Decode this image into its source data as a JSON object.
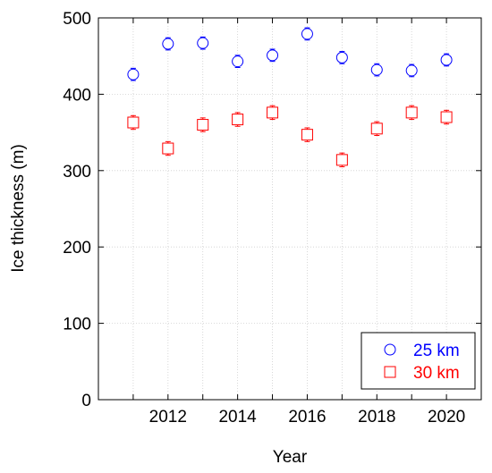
{
  "chart_data": {
    "type": "scatter",
    "xlabel": "Year",
    "ylabel": "Ice thickness (m)",
    "xlim": [
      2010,
      2021
    ],
    "ylim": [
      0,
      500
    ],
    "x_ticks": [
      2012,
      2014,
      2016,
      2018,
      2020
    ],
    "y_ticks": [
      0,
      100,
      200,
      300,
      400,
      500
    ],
    "grid": true,
    "legend_position": "bottom-right",
    "x": [
      2011,
      2012,
      2013,
      2014,
      2015,
      2016,
      2017,
      2018,
      2019,
      2020
    ],
    "series": [
      {
        "name": "25 km",
        "color": "#0000ff",
        "marker": "circle",
        "values": [
          426,
          466,
          467,
          443,
          451,
          479,
          448,
          432,
          431,
          445
        ],
        "error": [
          8,
          8,
          8,
          8,
          8,
          8,
          8,
          8,
          8,
          8
        ]
      },
      {
        "name": "30 km",
        "color": "#ff0000",
        "marker": "square",
        "values": [
          363,
          329,
          360,
          367,
          376,
          347,
          314,
          355,
          376,
          370
        ],
        "error": [
          9,
          9,
          9,
          9,
          9,
          9,
          9,
          9,
          9,
          9
        ]
      }
    ]
  }
}
